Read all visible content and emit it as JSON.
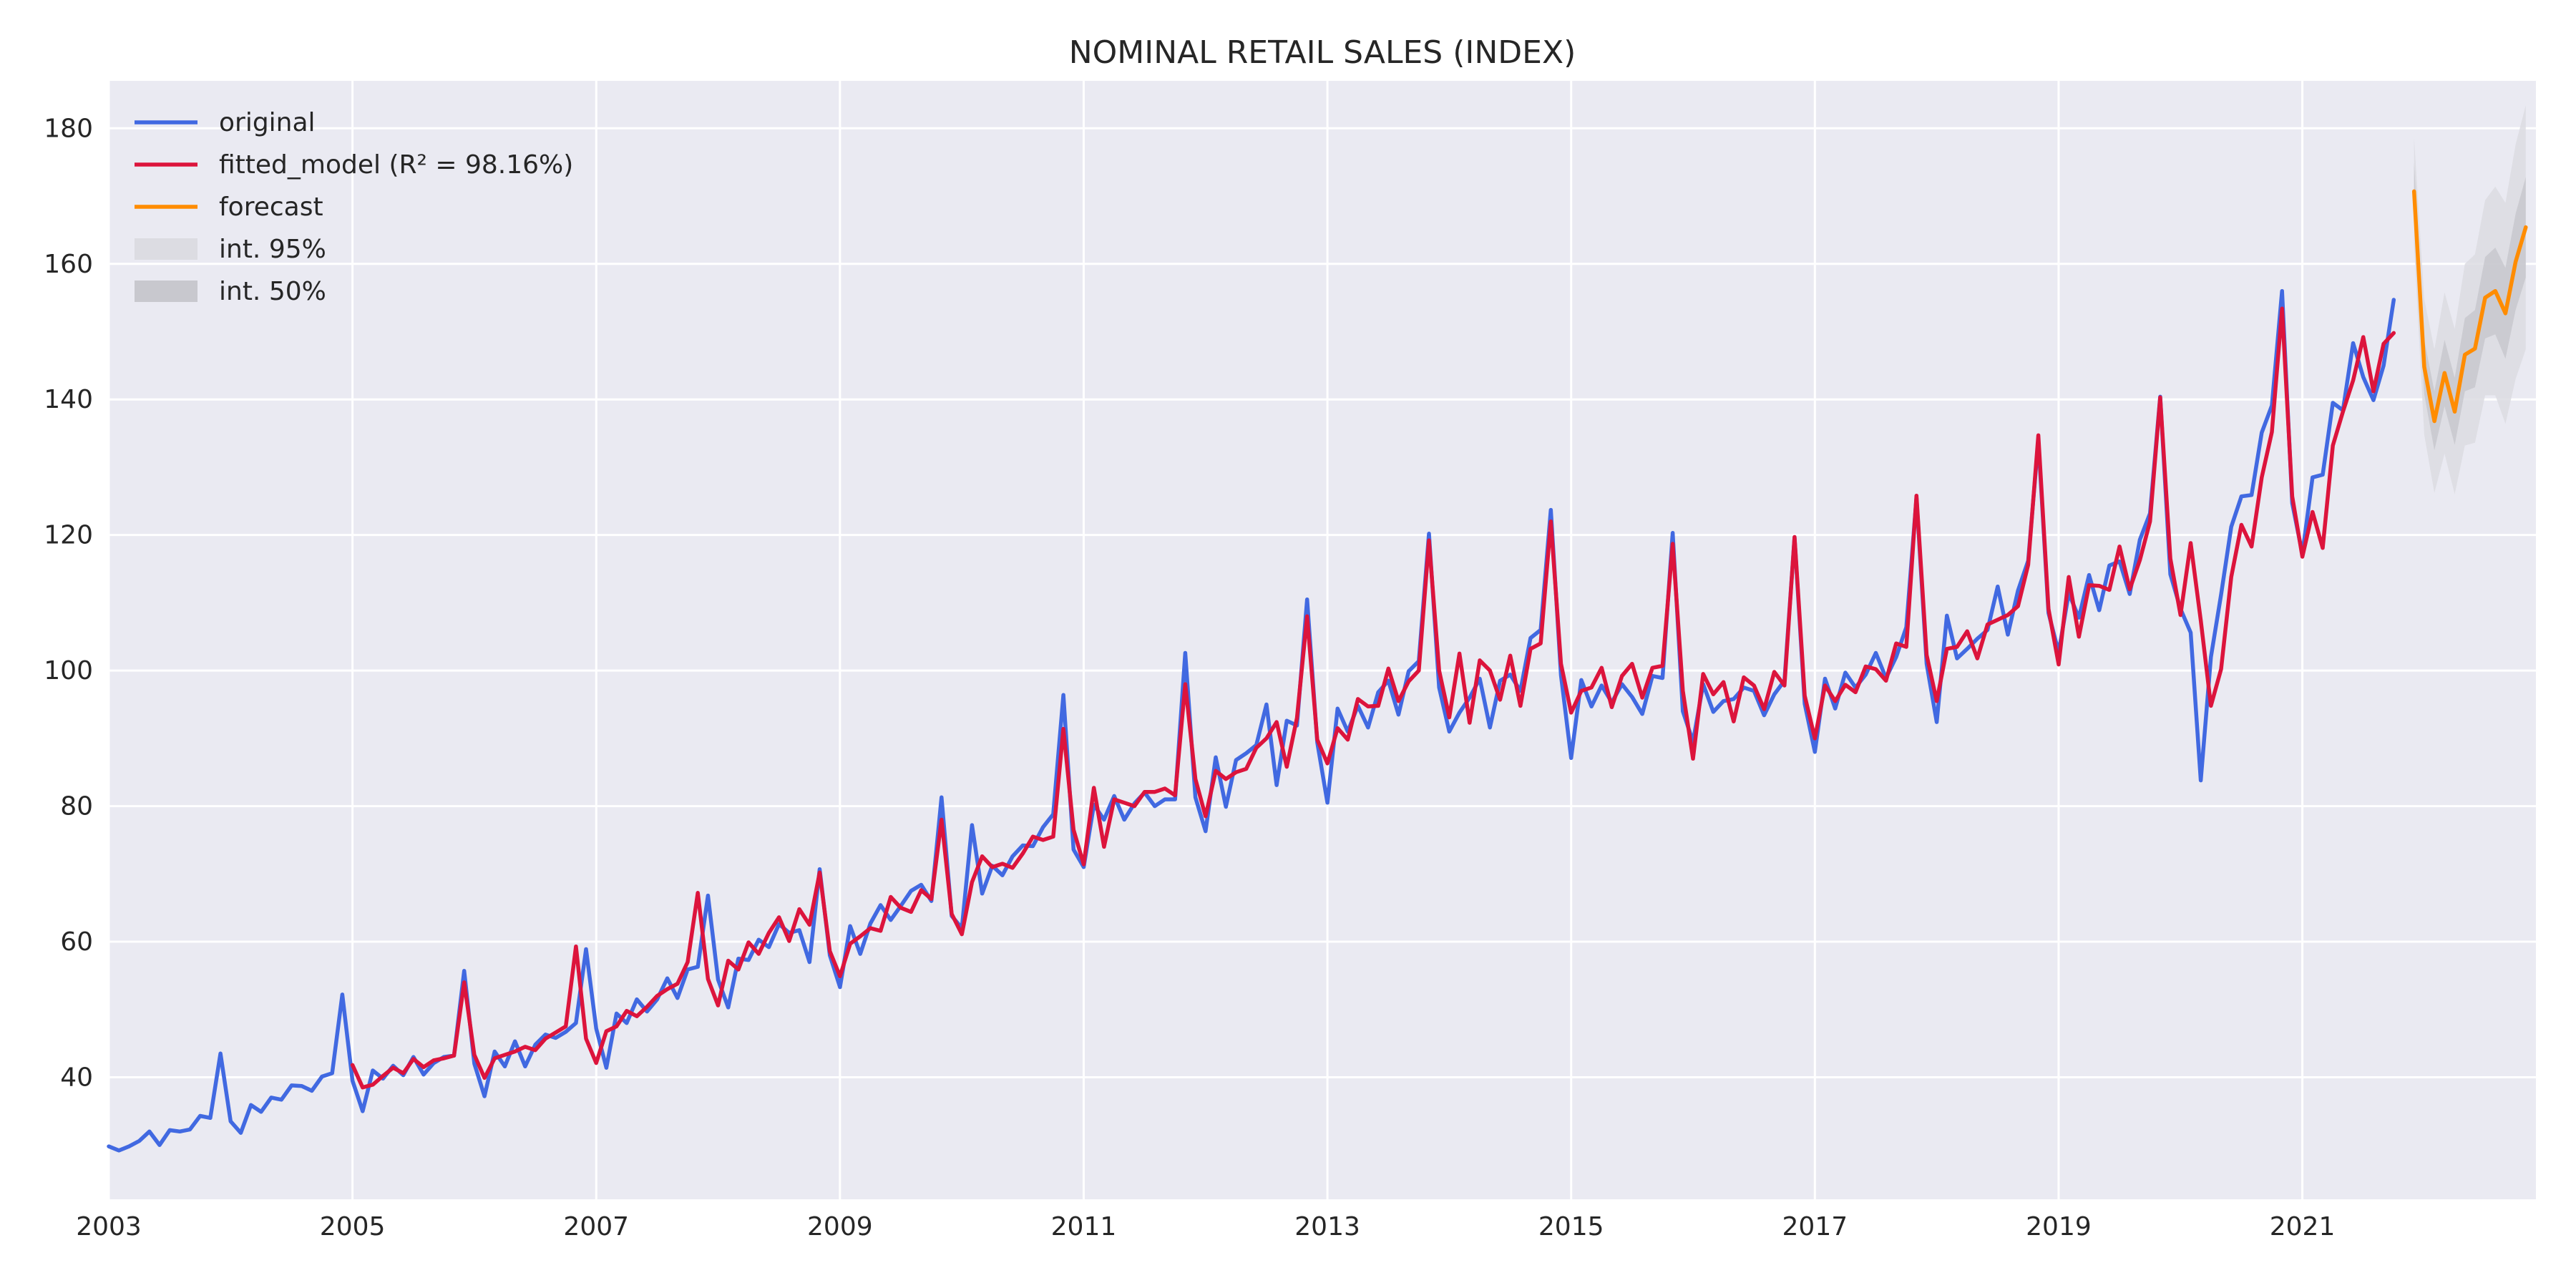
{
  "chart_data": {
    "type": "line",
    "title": "NOMINAL RETAIL SALES (INDEX)",
    "xlabel": "",
    "ylabel": "",
    "x_range": [
      "2003-01",
      "2022-12"
    ],
    "ylim": [
      22,
      187
    ],
    "y_ticks": [
      40,
      60,
      80,
      100,
      120,
      140,
      160,
      180
    ],
    "x_ticks": [
      "2003",
      "2005",
      "2007",
      "2009",
      "2011",
      "2013",
      "2015",
      "2017",
      "2019",
      "2021"
    ],
    "grid": true,
    "background": "#eaeaf2",
    "legend_position": "top-left",
    "legend": [
      {
        "label": "original",
        "kind": "line",
        "color": "#4169e1"
      },
      {
        "label": "fitted_model (R² = 98.16%)",
        "kind": "line",
        "color": "#dc143c"
      },
      {
        "label": "forecast",
        "kind": "line",
        "color": "#ff8c00"
      },
      {
        "label": "int. 95%",
        "kind": "band",
        "color": "#dcdce2"
      },
      {
        "label": "int. 50%",
        "kind": "band",
        "color": "#c8c8ce"
      }
    ],
    "series": [
      {
        "name": "original",
        "color": "#4169e1",
        "start": "2003-01",
        "values": [
          29.8,
          29.2,
          29.8,
          30.6,
          32.0,
          30.0,
          32.2,
          32.0,
          32.3,
          34.3,
          34.0,
          43.5,
          33.5,
          31.8,
          35.9,
          34.9,
          37.0,
          36.7,
          38.8,
          38.7,
          38.0,
          40.1,
          40.6,
          52.2,
          39.5,
          35.0,
          41.0,
          39.8,
          41.7,
          40.3,
          43.0,
          40.4,
          42.1,
          43.0,
          43.2,
          55.7,
          42.0,
          37.2,
          43.8,
          41.6,
          45.3,
          41.6,
          44.8,
          46.3,
          45.8,
          46.7,
          48.0,
          58.9,
          47.2,
          41.4,
          49.4,
          48.0,
          51.5,
          49.7,
          51.5,
          54.6,
          51.7,
          55.9,
          56.3,
          66.8,
          54.4,
          50.3,
          57.5,
          57.3,
          60.3,
          59.2,
          62.6,
          61.3,
          61.7,
          57.0,
          70.7,
          58.0,
          53.3,
          62.3,
          58.2,
          62.7,
          65.4,
          63.2,
          65.3,
          67.5,
          68.4,
          66.0,
          81.3,
          63.8,
          62.0,
          77.2,
          67.1,
          71.2,
          69.8,
          72.6,
          74.2,
          74.1,
          76.9,
          78.8,
          96.4,
          73.6,
          71.0,
          80.2,
          78.0,
          81.5,
          78.0,
          80.4,
          82.0,
          80.0,
          81.0,
          81.0,
          102.6,
          81.3,
          76.3,
          87.2,
          79.9,
          86.8,
          87.8,
          89.0,
          95.0,
          83.1,
          92.6,
          91.9,
          110.5,
          89.4,
          80.5,
          94.4,
          91.0,
          94.8,
          91.6,
          96.8,
          98.5,
          93.5,
          99.9,
          101.4,
          120.2,
          97.5,
          91.0,
          93.8,
          96.0,
          98.8,
          91.6,
          98.5,
          99.4,
          97.0,
          104.8,
          106.0,
          123.7,
          99.3,
          87.1,
          98.6,
          94.7,
          97.8,
          95.3,
          98.0,
          96.1,
          93.6,
          99.2,
          98.9,
          120.3,
          94.0,
          89.5,
          98.0,
          93.9,
          95.5,
          95.8,
          97.5,
          97.0,
          93.4,
          96.5,
          98.5,
          119.6,
          95.1,
          88.0,
          98.8,
          94.4,
          99.7,
          97.5,
          99.4,
          102.6,
          98.9,
          102.0,
          106.4,
          125.5,
          101.0,
          92.4,
          108.1,
          101.8,
          103.2,
          104.7,
          106.0,
          112.4,
          105.3,
          111.8,
          116.2,
          134.0,
          108.5,
          102.7,
          111.4,
          107.8,
          114.1,
          108.9,
          115.5,
          116.1,
          111.3,
          119.3,
          123.2,
          140.4,
          114.2,
          109.1,
          105.6,
          83.8,
          102.0,
          111.2,
          121.2,
          125.7,
          125.9,
          135.1,
          139.1,
          156.0,
          124.7,
          117.2,
          128.5,
          128.9,
          139.5,
          138.4,
          148.3,
          143.3,
          139.9,
          145.0,
          154.7
        ]
      },
      {
        "name": "fitted_model (R² = 98.16%)",
        "color": "#dc143c",
        "start": "2005-01",
        "values": [
          41.8,
          38.5,
          38.9,
          40.2,
          41.4,
          40.6,
          42.7,
          41.5,
          42.5,
          42.8,
          43.2,
          54.0,
          43.3,
          39.9,
          42.8,
          43.3,
          43.8,
          44.5,
          44.0,
          45.7,
          46.6,
          47.5,
          59.3,
          45.7,
          42.1,
          46.8,
          47.5,
          49.8,
          49.0,
          50.4,
          52.0,
          53.0,
          53.8,
          57.0,
          67.2,
          54.5,
          50.6,
          57.2,
          55.9,
          59.9,
          58.2,
          61.3,
          63.6,
          60.1,
          64.8,
          62.5,
          70.2,
          58.6,
          54.9,
          59.7,
          60.8,
          62.0,
          61.6,
          66.6,
          65.0,
          64.4,
          67.6,
          66.3,
          78.0,
          64.1,
          61.1,
          68.8,
          72.6,
          71.0,
          71.5,
          70.9,
          73.0,
          75.5,
          75.0,
          75.5,
          91.4,
          76.5,
          71.4,
          82.7,
          74.0,
          81.0,
          80.5,
          80.0,
          82.1,
          82.1,
          82.6,
          81.6,
          98.0,
          84.0,
          78.5,
          85.2,
          84.0,
          85.0,
          85.5,
          88.6,
          90.0,
          92.4,
          85.8,
          93.0,
          108.0,
          89.8,
          86.3,
          91.5,
          89.8,
          95.8,
          94.7,
          94.8,
          100.3,
          95.5,
          98.4,
          100.0,
          119.2,
          100.0,
          93.1,
          102.5,
          92.3,
          101.5,
          100.0,
          95.7,
          102.2,
          94.8,
          103.2,
          104.0,
          122.0,
          101.0,
          93.8,
          97.0,
          97.5,
          100.4,
          94.6,
          99.2,
          101.0,
          96.0,
          100.4,
          100.7,
          118.7,
          97.0,
          87.0,
          99.5,
          96.5,
          98.3,
          92.5,
          99.0,
          97.8,
          94.3,
          99.8,
          97.8,
          119.7,
          96.3,
          90.0,
          97.8,
          95.5,
          97.9,
          96.8,
          100.6,
          100.2,
          98.5,
          104.0,
          103.5,
          125.8,
          102.3,
          95.5,
          103.2,
          103.5,
          105.8,
          101.8,
          106.8,
          107.5,
          108.2,
          109.5,
          115.6,
          134.7,
          109.1,
          100.9,
          113.8,
          105.0,
          112.6,
          112.5,
          111.9,
          118.3,
          112.0,
          116.3,
          122.0,
          140.3,
          116.5,
          108.2,
          118.8,
          107.4,
          94.8,
          100.2,
          113.8,
          121.5,
          118.3,
          128.5,
          135.2,
          153.4,
          125.7,
          116.8,
          123.4,
          118.1,
          133.2,
          138.2,
          142.8,
          149.2,
          141.2,
          148.2,
          149.8
        ]
      },
      {
        "name": "forecast",
        "color": "#ff8c00",
        "start": "2021-12",
        "values": [
          170.7,
          144.8,
          136.8,
          143.9,
          138.2,
          146.6,
          147.5,
          155.0,
          156.0,
          152.7,
          160.3,
          165.4
        ],
        "int_50": [
          [
            166.5,
            174.9
          ],
          [
            140.8,
            148.8
          ],
          [
            132.5,
            141.2
          ],
          [
            139.0,
            148.8
          ],
          [
            133.3,
            143.2
          ],
          [
            141.2,
            152.0
          ],
          [
            141.8,
            153.2
          ],
          [
            149.0,
            161.0
          ],
          [
            149.6,
            162.4
          ],
          [
            146.0,
            159.4
          ],
          [
            153.2,
            167.4
          ],
          [
            158.0,
            172.8
          ]
        ],
        "int_95": [
          [
            162.8,
            178.6
          ],
          [
            134.8,
            154.8
          ],
          [
            126.2,
            147.4
          ],
          [
            132.0,
            155.8
          ],
          [
            126.0,
            150.4
          ],
          [
            133.2,
            160.0
          ],
          [
            133.6,
            161.4
          ],
          [
            140.6,
            169.4
          ],
          [
            140.6,
            171.4
          ],
          [
            136.4,
            169.0
          ],
          [
            143.0,
            177.6
          ],
          [
            147.4,
            183.4
          ]
        ]
      }
    ]
  }
}
